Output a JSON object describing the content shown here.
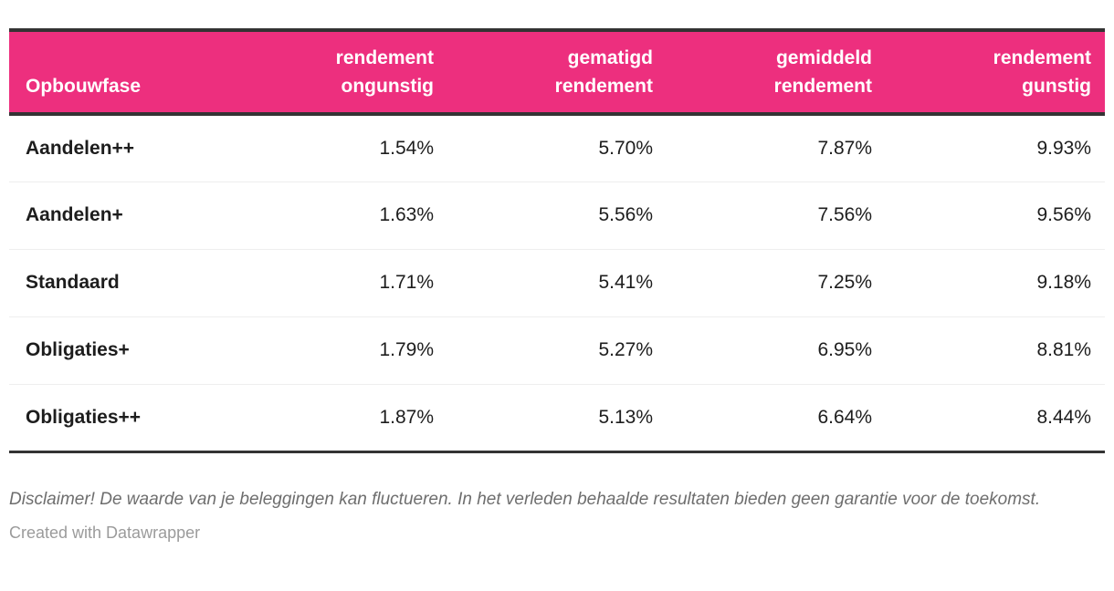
{
  "table": {
    "columns": [
      {
        "label": "Opbouwfase"
      },
      {
        "label": "rendement\nongunstig"
      },
      {
        "label": "gematigd\nrendement"
      },
      {
        "label": "gemiddeld\nrendement"
      },
      {
        "label": "rendement\ngunstig"
      }
    ],
    "rows": [
      {
        "label": "Aandelen++",
        "values": [
          "1.54%",
          "5.70%",
          "7.87%",
          "9.93%"
        ]
      },
      {
        "label": "Aandelen+",
        "values": [
          "1.63%",
          "5.56%",
          "7.56%",
          "9.56%"
        ]
      },
      {
        "label": "Standaard",
        "values": [
          "1.71%",
          "5.41%",
          "7.25%",
          "9.18%"
        ]
      },
      {
        "label": "Obligaties+",
        "values": [
          "1.79%",
          "5.27%",
          "6.95%",
          "8.81%"
        ]
      },
      {
        "label": "Obligaties++",
        "values": [
          "1.87%",
          "5.13%",
          "6.64%",
          "8.44%"
        ]
      }
    ]
  },
  "footer": {
    "disclaimer": "Disclaimer! De waarde van je beleggingen kan fluctueren. In het verleden behaalde resultaten bieden geen garantie voor de toekomst.",
    "credit": "Created with Datawrapper"
  },
  "colors": {
    "header_background": "#ED2F7E",
    "header_text": "#ffffff",
    "border_dark": "#333333",
    "row_divider": "#eeeeee",
    "body_text": "#1d1d1d",
    "disclaimer_text": "#6e6e6e",
    "credit_text": "#9b9b9b"
  },
  "chart_data": {
    "type": "table",
    "title": "",
    "first_column_header": "Opbouwfase",
    "categories": [
      "Aandelen++",
      "Aandelen+",
      "Standaard",
      "Obligaties+",
      "Obligaties++"
    ],
    "series": [
      {
        "name": "rendement ongunstig",
        "values": [
          1.54,
          1.63,
          1.71,
          1.79,
          1.87
        ]
      },
      {
        "name": "gematigd rendement",
        "values": [
          5.7,
          5.56,
          5.41,
          5.27,
          5.13
        ]
      },
      {
        "name": "gemiddeld rendement",
        "values": [
          7.87,
          7.56,
          7.25,
          6.95,
          6.64
        ]
      },
      {
        "name": "rendement gunstig",
        "values": [
          9.93,
          9.56,
          9.18,
          8.81,
          8.44
        ]
      }
    ],
    "unit": "%",
    "notes": "Disclaimer! De waarde van je beleggingen kan fluctueren. In het verleden behaalde resultaten bieden geen garantie voor de toekomst.",
    "credit": "Created with Datawrapper"
  }
}
